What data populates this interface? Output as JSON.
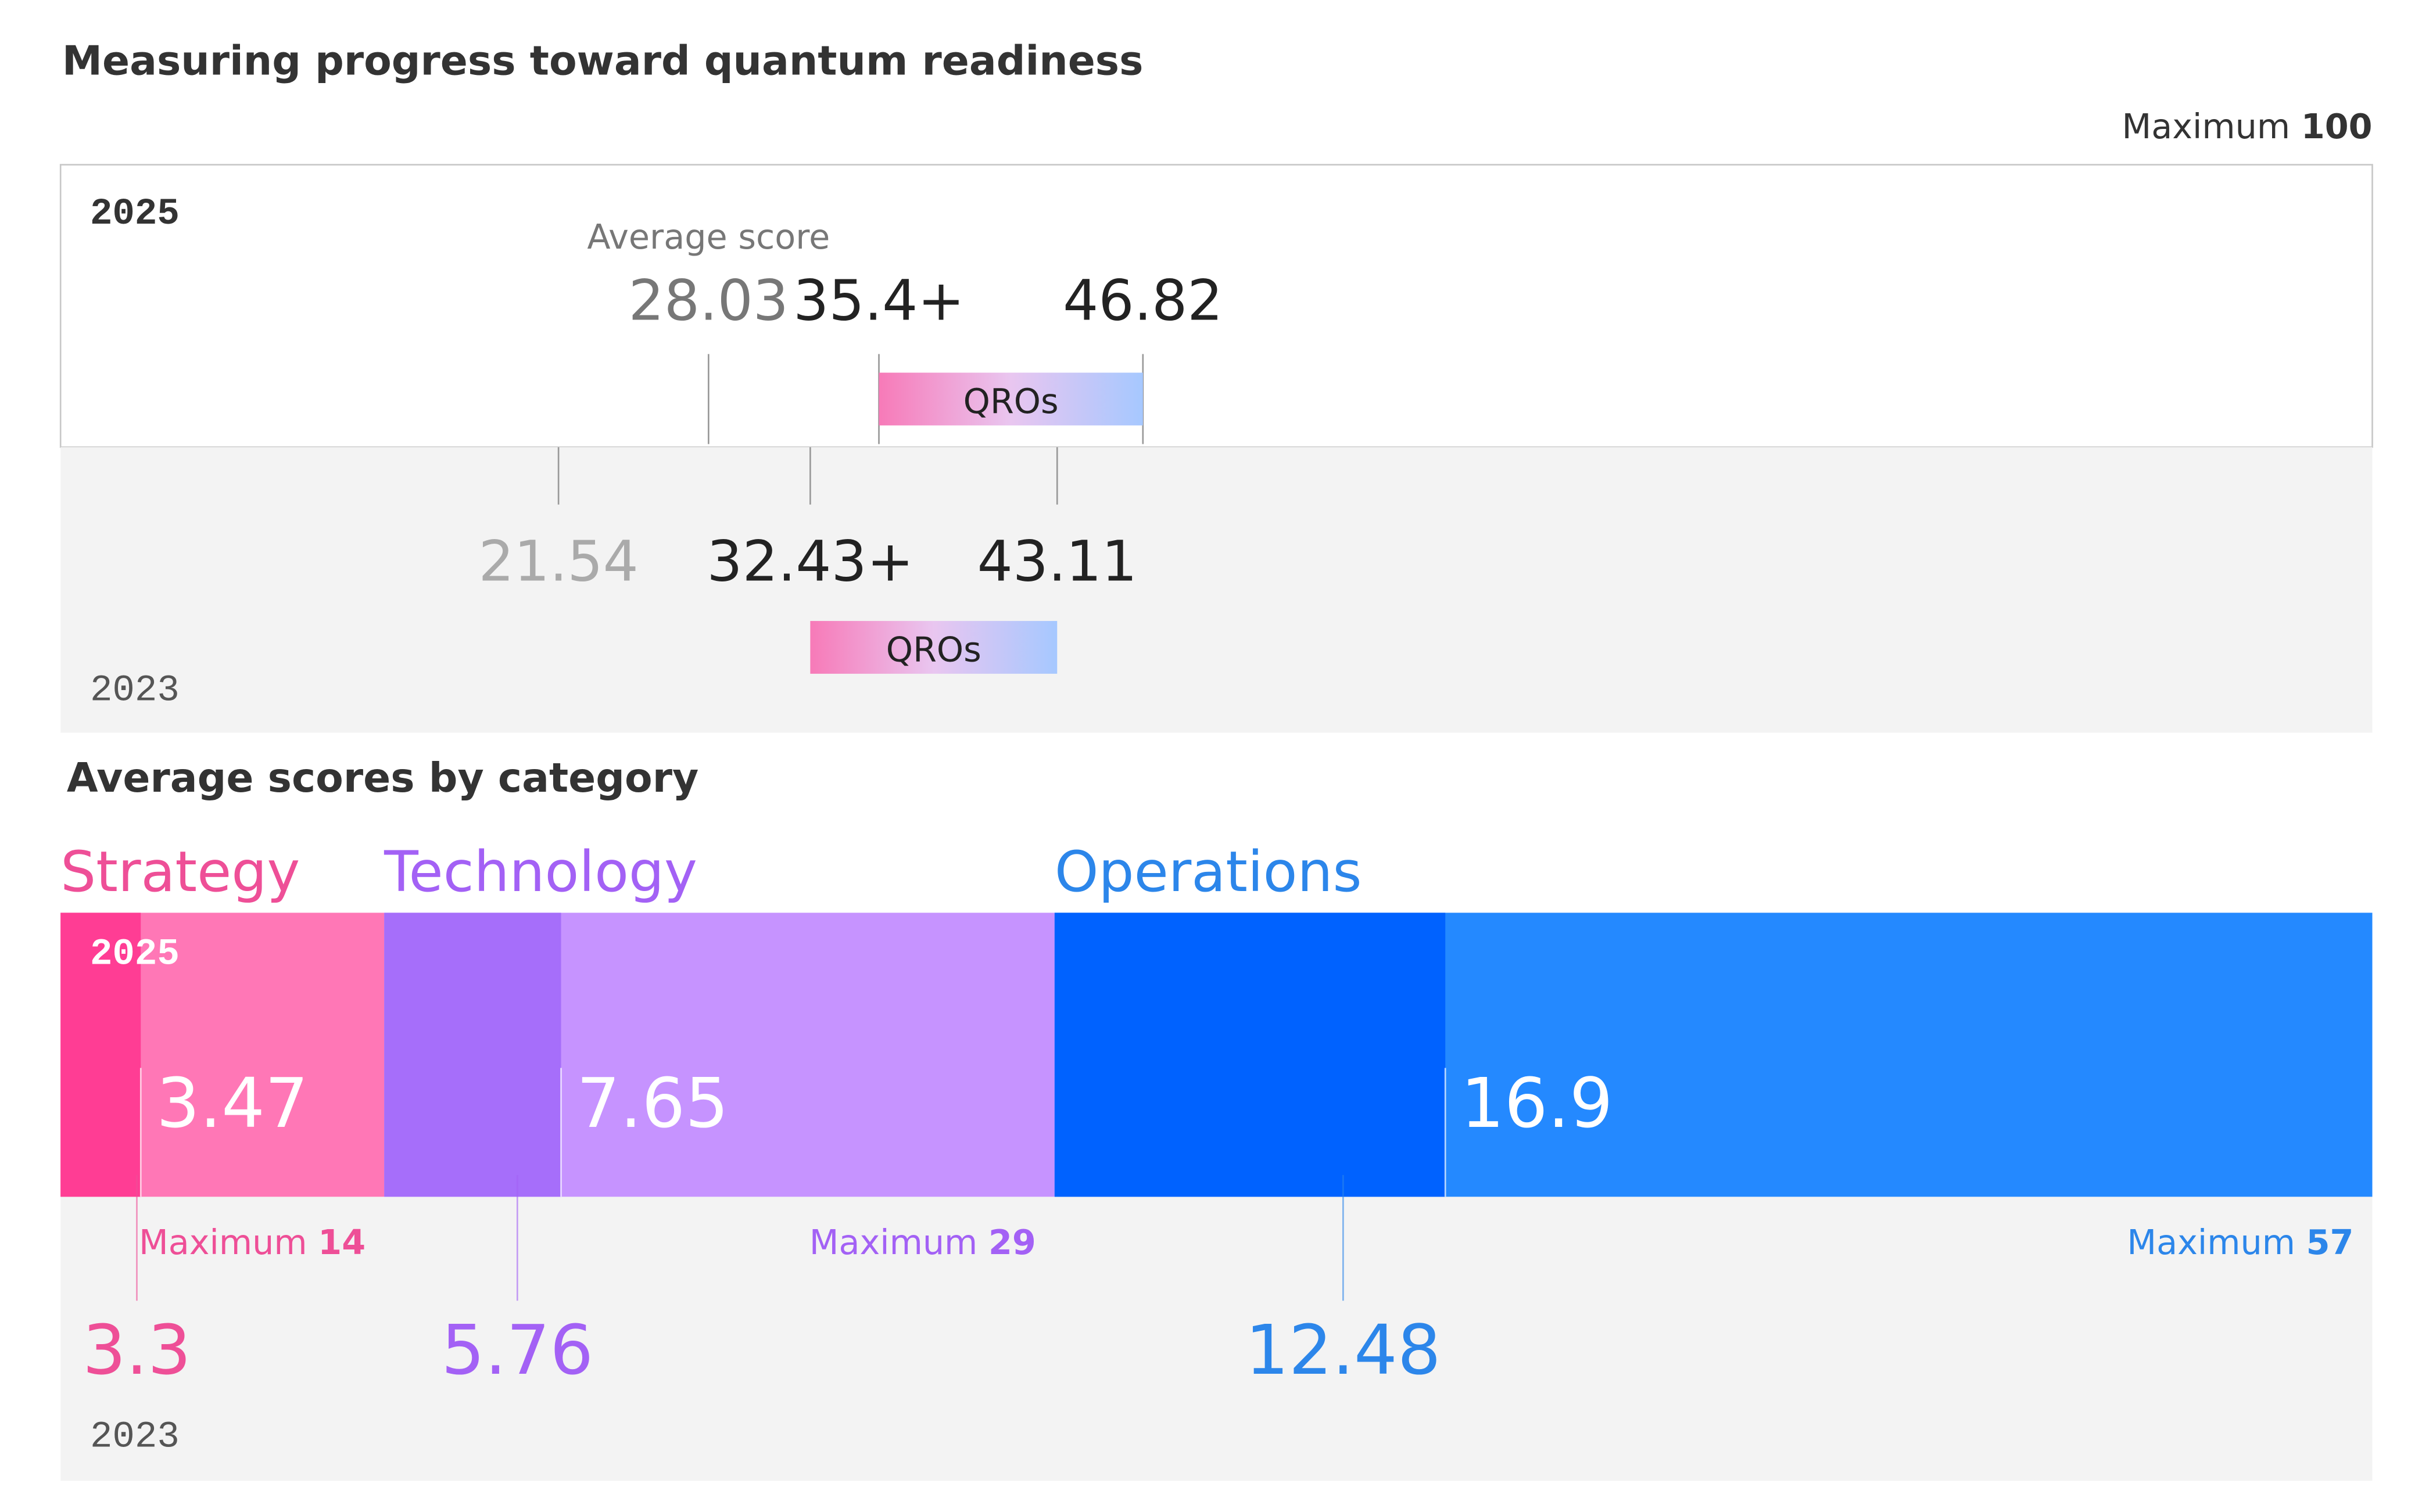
{
  "chart_data": [
    {
      "type": "range",
      "title": "Measuring progress toward quantum readiness",
      "max_label": "Maximum",
      "xlim": [
        0,
        100
      ],
      "average_label": "Average score",
      "range_label": "QROs",
      "series": [
        {
          "name": "2025",
          "values": [
            28.03,
            35.4,
            46.82
          ],
          "value_labels": [
            "28.03",
            "35.4+",
            "46.82"
          ]
        },
        {
          "name": "2023",
          "values": [
            21.54,
            32.43,
            43.11
          ],
          "value_labels": [
            "21.54",
            "32.43+",
            "43.11"
          ]
        }
      ]
    },
    {
      "type": "segmented-bar",
      "title": "Average scores by category",
      "xlim": [
        0,
        100
      ],
      "categories": [
        "Strategy",
        "Technology",
        "Operations"
      ],
      "maximums": [
        14,
        29,
        57
      ],
      "max_label": "Maximum",
      "colors": [
        "#ff3d94",
        "#a66efa",
        "#0062ff"
      ],
      "light_colors": [
        "#ff77b6",
        "#c693ff",
        "#2489ff"
      ],
      "label_colors": [
        "#ee4f97",
        "#a361f5",
        "#2c86ea"
      ],
      "series": [
        {
          "name": "2025",
          "values": [
            3.47,
            7.65,
            16.9
          ]
        },
        {
          "name": "2023",
          "values": [
            3.3,
            5.76,
            12.48
          ]
        }
      ]
    }
  ]
}
